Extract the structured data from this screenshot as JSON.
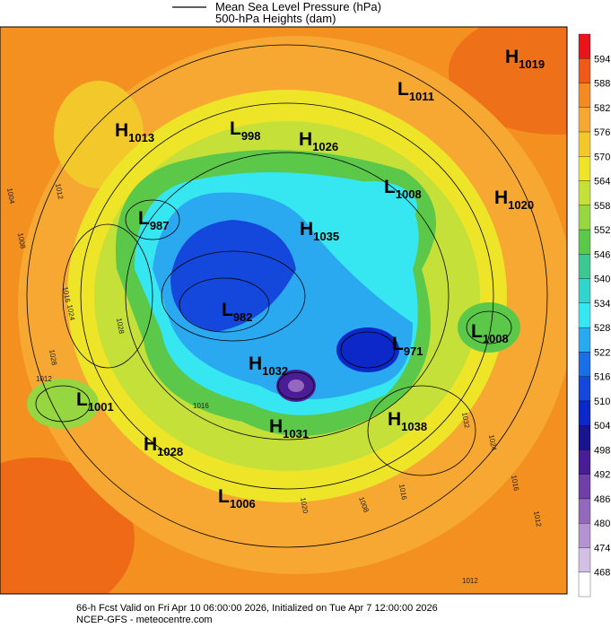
{
  "legend": {
    "line1": "Mean Sea Level Pressure (hPa)",
    "line2": "500-hPa Heights (dam)"
  },
  "colorbar": {
    "ticks": [
      594,
      588,
      582,
      576,
      570,
      564,
      558,
      552,
      546,
      540,
      534,
      528,
      522,
      516,
      510,
      504,
      498,
      492,
      486,
      480,
      474,
      468
    ],
    "colors": [
      "#e8141c",
      "#f05a18",
      "#f38a22",
      "#f6a832",
      "#f2c82a",
      "#eee428",
      "#c6e03a",
      "#96d640",
      "#5cc84a",
      "#3cc890",
      "#30d6cc",
      "#36e6f0",
      "#2aa8f0",
      "#1a6ee6",
      "#1448dc",
      "#0c28c8",
      "#1a1490",
      "#4a1c96",
      "#7040a8",
      "#9468bc",
      "#b494d0",
      "#d4c0e4",
      "#ffffff"
    ]
  },
  "centers": [
    {
      "symbol": "H",
      "pressure": 1019
    },
    {
      "symbol": "L",
      "pressure": 1011
    },
    {
      "symbol": "H",
      "pressure": 1013
    },
    {
      "symbol": "L",
      "pressure": 998
    },
    {
      "symbol": "H",
      "pressure": 1026
    },
    {
      "symbol": "L",
      "pressure": 1008
    },
    {
      "symbol": "H",
      "pressure": 1020
    },
    {
      "symbol": "L",
      "pressure": 987
    },
    {
      "symbol": "H",
      "pressure": 1035
    },
    {
      "symbol": "L",
      "pressure": 982
    },
    {
      "symbol": "L",
      "pressure": 971
    },
    {
      "symbol": "L",
      "pressure": 1008
    },
    {
      "symbol": "H",
      "pressure": 1032
    },
    {
      "symbol": "L",
      "pressure": 1001
    },
    {
      "symbol": "H",
      "pressure": 1031
    },
    {
      "symbol": "H",
      "pressure": 1038
    },
    {
      "symbol": "H",
      "pressure": 1028
    },
    {
      "symbol": "L",
      "pressure": 1006
    }
  ],
  "contour_labels": [
    1004,
    1012,
    1008,
    1016,
    1024,
    1028,
    1028,
    1012,
    1016,
    1020,
    1016,
    1012,
    1032,
    1024,
    1016,
    1012,
    1008
  ],
  "footer": {
    "line1": "66-h Fcst Valid on Fri Apr 10 06:00:00 2026, Initialized on Tue Apr  7 12:00:00 2026",
    "line2": "NCEP-GFS  - meteocentre.com"
  }
}
